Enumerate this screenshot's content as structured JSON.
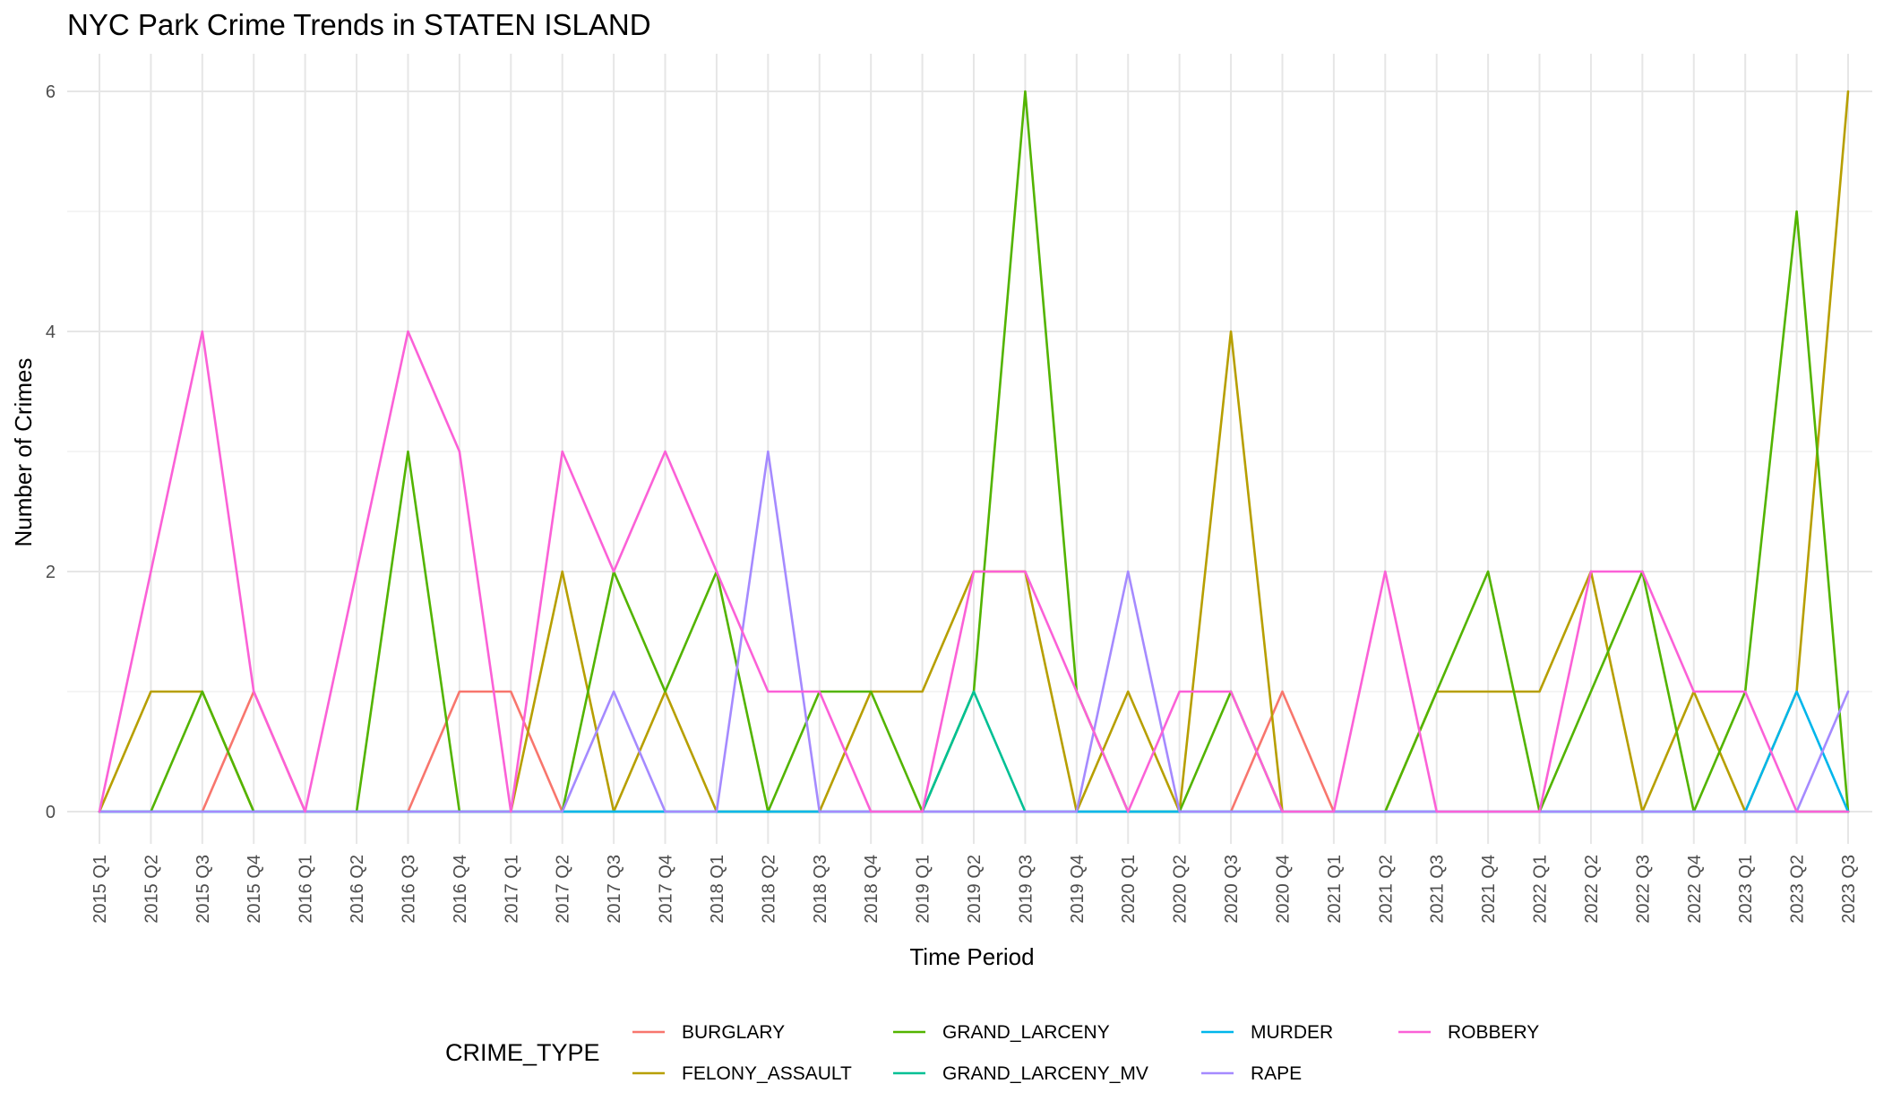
{
  "chart_data": {
    "type": "line",
    "title": "NYC Park Crime Trends in STATEN ISLAND",
    "xlabel": "Time Period",
    "ylabel": "Number of Crimes",
    "ylim": [
      0,
      6
    ],
    "yticks": [
      0,
      2,
      4,
      6
    ],
    "grid": true,
    "legend_title": "CRIME_TYPE",
    "legend_position": "bottom",
    "categories": [
      "2015 Q1",
      "2015 Q2",
      "2015 Q3",
      "2015 Q4",
      "2016 Q1",
      "2016 Q2",
      "2016 Q3",
      "2016 Q4",
      "2017 Q1",
      "2017 Q2",
      "2017 Q3",
      "2017 Q4",
      "2018 Q1",
      "2018 Q2",
      "2018 Q3",
      "2018 Q4",
      "2019 Q1",
      "2019 Q2",
      "2019 Q3",
      "2019 Q4",
      "2020 Q1",
      "2020 Q2",
      "2020 Q3",
      "2020 Q4",
      "2021 Q1",
      "2021 Q2",
      "2021 Q3",
      "2021 Q4",
      "2022 Q1",
      "2022 Q2",
      "2022 Q3",
      "2022 Q4",
      "2023 Q1",
      "2023 Q2",
      "2023 Q3"
    ],
    "series": [
      {
        "name": "BURGLARY",
        "color": "#F8766D",
        "values": [
          0,
          0,
          0,
          1,
          0,
          0,
          0,
          1,
          1,
          0,
          0,
          0,
          0,
          0,
          0,
          0,
          0,
          0,
          0,
          0,
          0,
          0,
          0,
          1,
          0,
          0,
          0,
          0,
          0,
          0,
          0,
          0,
          0,
          0,
          0
        ]
      },
      {
        "name": "FELONY_ASSAULT",
        "color": "#B79F00",
        "values": [
          0,
          1,
          1,
          0,
          0,
          0,
          0,
          0,
          0,
          2,
          0,
          1,
          0,
          0,
          0,
          1,
          1,
          2,
          2,
          0,
          1,
          0,
          4,
          0,
          0,
          0,
          1,
          1,
          1,
          2,
          0,
          1,
          0,
          1,
          6
        ]
      },
      {
        "name": "GRAND_LARCENY",
        "color": "#53B400",
        "values": [
          0,
          0,
          1,
          0,
          0,
          0,
          3,
          0,
          0,
          0,
          2,
          1,
          2,
          0,
          1,
          1,
          0,
          1,
          6,
          1,
          0,
          0,
          1,
          0,
          0,
          0,
          1,
          2,
          0,
          1,
          2,
          0,
          1,
          5,
          0
        ]
      },
      {
        "name": "GRAND_LARCENY_MV",
        "color": "#00C094",
        "values": [
          0,
          0,
          0,
          0,
          0,
          0,
          0,
          0,
          0,
          0,
          0,
          0,
          0,
          0,
          0,
          0,
          0,
          1,
          0,
          0,
          0,
          0,
          0,
          0,
          0,
          0,
          0,
          0,
          0,
          0,
          0,
          0,
          0,
          0,
          0
        ]
      },
      {
        "name": "MURDER",
        "color": "#00B6EB",
        "values": [
          0,
          0,
          0,
          0,
          0,
          0,
          0,
          0,
          0,
          0,
          0,
          0,
          0,
          0,
          0,
          0,
          0,
          0,
          0,
          0,
          0,
          0,
          0,
          0,
          0,
          0,
          0,
          0,
          0,
          0,
          0,
          0,
          0,
          1,
          0
        ]
      },
      {
        "name": "RAPE",
        "color": "#A58AFF",
        "values": [
          0,
          0,
          0,
          0,
          0,
          0,
          0,
          0,
          0,
          0,
          1,
          0,
          0,
          3,
          0,
          0,
          0,
          0,
          0,
          0,
          2,
          0,
          0,
          0,
          0,
          0,
          0,
          0,
          0,
          0,
          0,
          0,
          0,
          0,
          1
        ]
      },
      {
        "name": "ROBBERY",
        "color": "#FB61D7",
        "values": [
          0,
          2,
          4,
          1,
          0,
          2,
          4,
          3,
          0,
          3,
          2,
          3,
          2,
          1,
          1,
          0,
          0,
          2,
          2,
          1,
          0,
          1,
          1,
          0,
          0,
          2,
          0,
          0,
          0,
          2,
          2,
          1,
          1,
          0,
          0
        ]
      }
    ]
  }
}
